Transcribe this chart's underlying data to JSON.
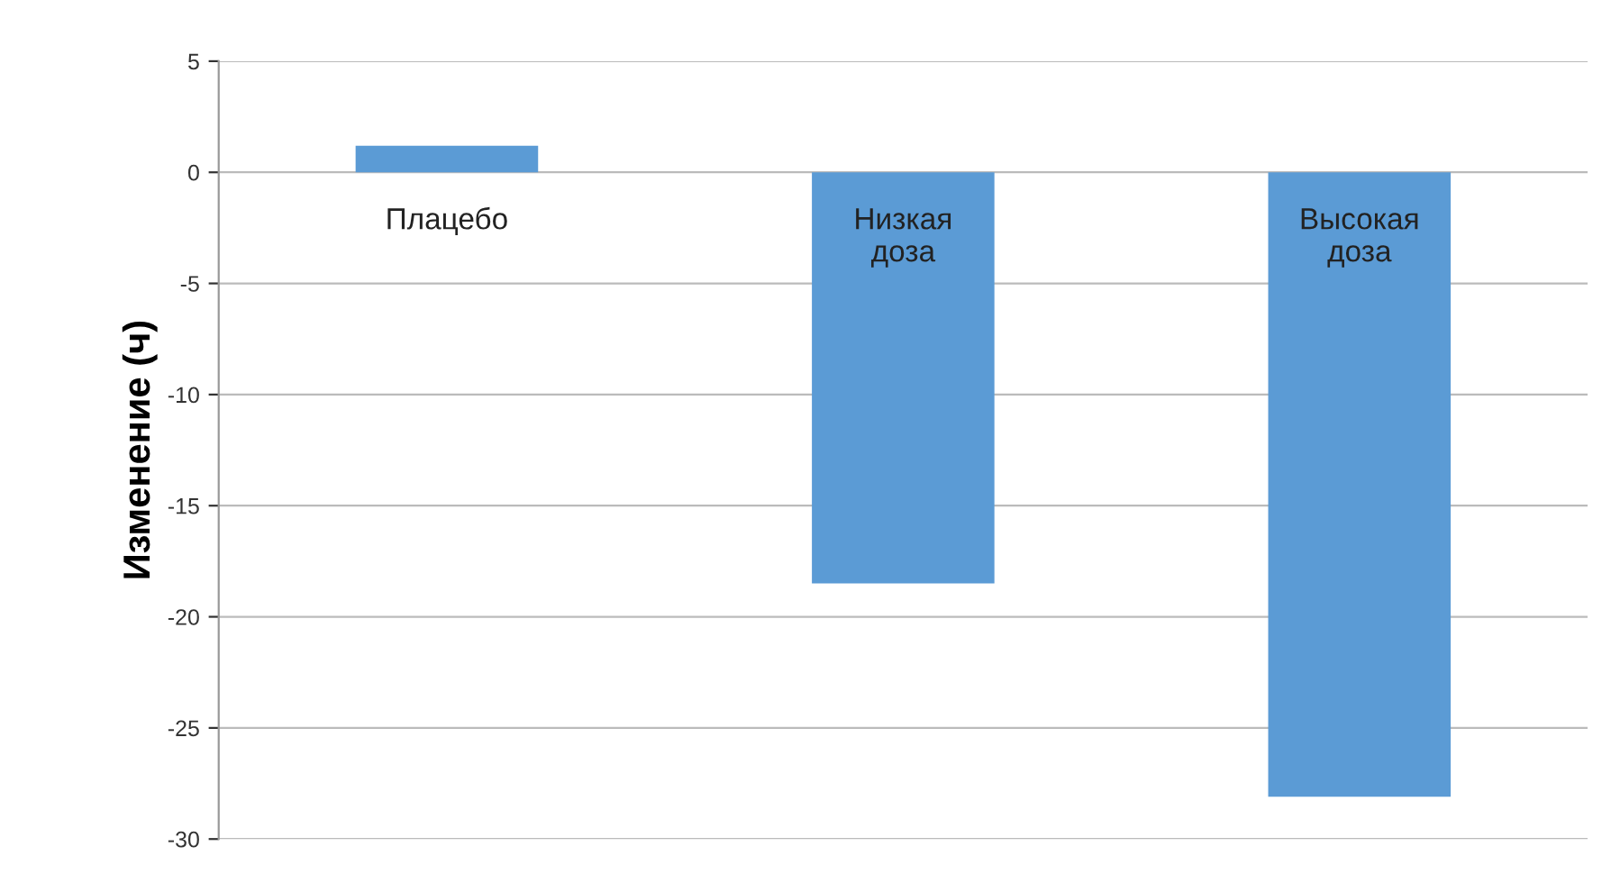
{
  "chart_data": {
    "type": "bar",
    "ylabel": "Изменение (ч)",
    "categories": [
      "Плацебо",
      "Низкая\nдоза",
      "Высокая\nдоза"
    ],
    "values": [
      1.2,
      -18.5,
      -28.1
    ],
    "color": "#5b9bd5",
    "ylim": [
      -30,
      5
    ],
    "yticks": [
      5,
      0,
      -5,
      -10,
      -15,
      -20,
      -25,
      -30
    ],
    "grid": "y"
  }
}
